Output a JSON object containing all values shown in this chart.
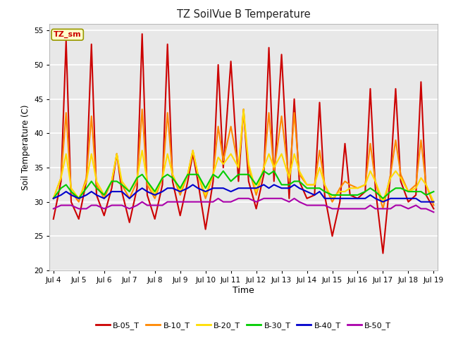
{
  "title": "TZ SoilVue B Temperature",
  "xlabel": "Time",
  "ylabel": "Soil Temperature (C)",
  "ylim": [
    20,
    56
  ],
  "yticks": [
    20,
    25,
    30,
    35,
    40,
    45,
    50,
    55
  ],
  "fig_bg": "#ffffff",
  "plot_bg": "#e8e8e8",
  "legend_label": "TZ_sm",
  "legend_entries": [
    "B-05_T",
    "B-10_T",
    "B-20_T",
    "B-30_T",
    "B-40_T",
    "B-50_T"
  ],
  "line_colors": [
    "#cc0000",
    "#ff8800",
    "#ffdd00",
    "#00cc00",
    "#0000cc",
    "#aa00aa"
  ],
  "series": {
    "B-05_T": {
      "x": [
        4.0,
        4.3,
        4.5,
        4.7,
        5.0,
        5.3,
        5.5,
        5.7,
        6.0,
        6.3,
        6.5,
        6.7,
        7.0,
        7.3,
        7.5,
        7.7,
        8.0,
        8.3,
        8.5,
        8.7,
        9.0,
        9.3,
        9.5,
        9.7,
        10.0,
        10.3,
        10.5,
        10.7,
        11.0,
        11.3,
        11.5,
        11.7,
        12.0,
        12.3,
        12.5,
        12.7,
        13.0,
        13.3,
        13.5,
        13.7,
        14.0,
        14.3,
        14.5,
        14.7,
        15.0,
        15.3,
        15.5,
        15.7,
        16.0,
        16.3,
        16.5,
        16.7,
        17.0,
        17.3,
        17.5,
        17.7,
        18.0,
        18.3,
        18.5,
        18.7,
        19.0
      ],
      "y": [
        27.5,
        33.0,
        53.5,
        30.0,
        27.5,
        33.0,
        53.0,
        31.0,
        28.0,
        32.0,
        37.0,
        31.5,
        27.0,
        32.0,
        54.5,
        31.0,
        27.5,
        32.5,
        53.0,
        33.0,
        28.0,
        33.0,
        37.0,
        33.0,
        26.0,
        33.0,
        50.0,
        35.0,
        50.5,
        33.0,
        43.5,
        33.0,
        29.0,
        34.0,
        52.5,
        33.0,
        51.5,
        30.5,
        45.0,
        33.0,
        30.5,
        31.0,
        44.5,
        31.0,
        25.0,
        30.0,
        38.5,
        31.0,
        30.5,
        31.5,
        46.5,
        32.0,
        22.5,
        34.0,
        46.5,
        33.0,
        30.0,
        31.0,
        47.5,
        31.0,
        29.0
      ]
    },
    "B-10_T": {
      "x": [
        4.0,
        4.3,
        4.5,
        4.7,
        5.0,
        5.3,
        5.5,
        5.7,
        6.0,
        6.3,
        6.5,
        6.7,
        7.0,
        7.3,
        7.5,
        7.7,
        8.0,
        8.3,
        8.5,
        8.7,
        9.0,
        9.3,
        9.5,
        9.7,
        10.0,
        10.3,
        10.5,
        10.7,
        11.0,
        11.3,
        11.5,
        11.7,
        12.0,
        12.3,
        12.5,
        12.7,
        13.0,
        13.3,
        13.5,
        13.7,
        14.0,
        14.3,
        14.5,
        14.7,
        15.0,
        15.3,
        15.5,
        15.7,
        16.0,
        16.3,
        16.5,
        16.7,
        17.0,
        17.3,
        17.5,
        17.7,
        18.0,
        18.3,
        18.5,
        18.7,
        19.0
      ],
      "y": [
        30.5,
        33.5,
        43.0,
        31.5,
        30.0,
        33.5,
        42.5,
        32.5,
        30.5,
        33.0,
        37.0,
        32.5,
        30.5,
        33.0,
        43.5,
        32.5,
        30.5,
        33.5,
        43.0,
        34.0,
        31.0,
        34.0,
        37.5,
        34.0,
        30.5,
        34.0,
        41.0,
        36.0,
        41.0,
        35.0,
        43.0,
        35.0,
        31.0,
        35.0,
        43.0,
        34.5,
        42.5,
        33.0,
        43.0,
        34.0,
        32.5,
        32.5,
        37.5,
        32.5,
        30.0,
        32.0,
        33.0,
        32.5,
        32.0,
        32.5,
        38.5,
        33.0,
        29.0,
        34.0,
        39.0,
        34.0,
        31.5,
        32.5,
        39.0,
        32.5,
        29.5
      ]
    },
    "B-20_T": {
      "x": [
        4.0,
        4.3,
        4.5,
        4.7,
        5.0,
        5.3,
        5.5,
        5.7,
        6.0,
        6.3,
        6.5,
        6.7,
        7.0,
        7.3,
        7.5,
        7.7,
        8.0,
        8.3,
        8.5,
        8.7,
        9.0,
        9.3,
        9.5,
        9.7,
        10.0,
        10.3,
        10.5,
        10.7,
        11.0,
        11.3,
        11.5,
        11.7,
        12.0,
        12.3,
        12.5,
        12.7,
        13.0,
        13.3,
        13.5,
        13.7,
        14.0,
        14.3,
        14.5,
        14.7,
        15.0,
        15.3,
        15.5,
        15.7,
        16.0,
        16.3,
        16.5,
        16.7,
        17.0,
        17.3,
        17.5,
        17.7,
        18.0,
        18.3,
        18.5,
        18.7,
        19.0
      ],
      "y": [
        30.5,
        33.5,
        37.0,
        32.0,
        30.5,
        33.0,
        37.0,
        33.0,
        31.0,
        33.0,
        37.0,
        33.0,
        31.5,
        33.5,
        37.5,
        33.0,
        31.0,
        33.5,
        37.0,
        34.0,
        31.5,
        34.0,
        37.5,
        34.0,
        31.0,
        34.0,
        36.5,
        35.5,
        37.0,
        35.0,
        43.5,
        35.5,
        31.5,
        35.0,
        37.0,
        35.0,
        37.0,
        33.5,
        37.0,
        34.5,
        32.5,
        32.5,
        35.0,
        32.5,
        30.5,
        31.5,
        31.5,
        32.0,
        32.0,
        32.5,
        34.5,
        33.0,
        30.0,
        33.5,
        34.5,
        33.5,
        31.5,
        32.0,
        33.5,
        32.5,
        30.0
      ]
    },
    "B-30_T": {
      "x": [
        4.0,
        4.3,
        4.5,
        4.7,
        5.0,
        5.3,
        5.5,
        5.7,
        6.0,
        6.3,
        6.5,
        6.7,
        7.0,
        7.3,
        7.5,
        7.7,
        8.0,
        8.3,
        8.5,
        8.7,
        9.0,
        9.3,
        9.5,
        9.7,
        10.0,
        10.3,
        10.5,
        10.7,
        11.0,
        11.3,
        11.5,
        11.7,
        12.0,
        12.3,
        12.5,
        12.7,
        13.0,
        13.3,
        13.5,
        13.7,
        14.0,
        14.3,
        14.5,
        14.7,
        15.0,
        15.3,
        15.5,
        15.7,
        16.0,
        16.3,
        16.5,
        16.7,
        17.0,
        17.3,
        17.5,
        17.7,
        18.0,
        18.3,
        18.5,
        18.7,
        19.0
      ],
      "y": [
        30.5,
        32.0,
        32.5,
        31.5,
        30.5,
        32.0,
        33.0,
        32.0,
        31.0,
        33.0,
        33.0,
        32.5,
        31.5,
        33.5,
        34.0,
        33.0,
        31.5,
        33.5,
        34.0,
        33.5,
        32.0,
        34.0,
        34.0,
        34.0,
        32.0,
        34.0,
        33.5,
        34.5,
        33.0,
        34.0,
        34.0,
        34.0,
        32.5,
        34.5,
        34.0,
        34.5,
        32.5,
        32.5,
        33.0,
        33.0,
        32.0,
        32.0,
        32.0,
        31.5,
        31.0,
        31.0,
        31.0,
        31.0,
        31.0,
        31.5,
        32.0,
        31.5,
        30.5,
        31.5,
        32.0,
        32.0,
        31.5,
        31.5,
        31.5,
        31.0,
        31.5
      ]
    },
    "B-40_T": {
      "x": [
        4.0,
        4.3,
        4.5,
        4.7,
        5.0,
        5.3,
        5.5,
        5.7,
        6.0,
        6.3,
        6.5,
        6.7,
        7.0,
        7.3,
        7.5,
        7.7,
        8.0,
        8.3,
        8.5,
        8.7,
        9.0,
        9.3,
        9.5,
        9.7,
        10.0,
        10.3,
        10.5,
        10.7,
        11.0,
        11.3,
        11.5,
        11.7,
        12.0,
        12.3,
        12.5,
        12.7,
        13.0,
        13.3,
        13.5,
        13.7,
        14.0,
        14.3,
        14.5,
        14.7,
        15.0,
        15.3,
        15.5,
        15.7,
        16.0,
        16.3,
        16.5,
        16.7,
        17.0,
        17.3,
        17.5,
        17.7,
        18.0,
        18.3,
        18.5,
        18.7,
        19.0
      ],
      "y": [
        30.5,
        31.0,
        31.5,
        31.0,
        30.5,
        31.0,
        31.5,
        31.0,
        30.5,
        31.5,
        31.5,
        31.5,
        30.5,
        31.5,
        32.0,
        31.5,
        31.0,
        31.5,
        32.0,
        32.0,
        31.5,
        32.0,
        32.5,
        32.0,
        31.5,
        32.0,
        32.0,
        32.0,
        31.5,
        32.0,
        32.0,
        32.0,
        32.0,
        32.5,
        32.0,
        32.5,
        32.0,
        32.0,
        32.5,
        32.0,
        31.5,
        31.0,
        31.5,
        30.5,
        30.5,
        30.5,
        30.5,
        30.5,
        30.5,
        30.5,
        31.0,
        30.5,
        30.0,
        30.5,
        30.5,
        30.5,
        30.5,
        30.5,
        30.0,
        30.0,
        30.0
      ]
    },
    "B-50_T": {
      "x": [
        4.0,
        4.3,
        4.5,
        4.7,
        5.0,
        5.3,
        5.5,
        5.7,
        6.0,
        6.3,
        6.5,
        6.7,
        7.0,
        7.3,
        7.5,
        7.7,
        8.0,
        8.3,
        8.5,
        8.7,
        9.0,
        9.3,
        9.5,
        9.7,
        10.0,
        10.3,
        10.5,
        10.7,
        11.0,
        11.3,
        11.5,
        11.7,
        12.0,
        12.3,
        12.5,
        12.7,
        13.0,
        13.3,
        13.5,
        13.7,
        14.0,
        14.3,
        14.5,
        14.7,
        15.0,
        15.3,
        15.5,
        15.7,
        16.0,
        16.3,
        16.5,
        16.7,
        17.0,
        17.3,
        17.5,
        17.7,
        18.0,
        18.3,
        18.5,
        18.7,
        19.0
      ],
      "y": [
        29.0,
        29.5,
        29.5,
        29.5,
        29.0,
        29.0,
        29.5,
        29.5,
        29.0,
        29.5,
        29.5,
        29.5,
        29.0,
        29.5,
        30.0,
        29.5,
        29.5,
        29.5,
        30.0,
        30.0,
        30.0,
        30.0,
        30.0,
        30.0,
        30.0,
        30.0,
        30.5,
        30.0,
        30.0,
        30.5,
        30.5,
        30.5,
        30.0,
        30.5,
        30.5,
        30.5,
        30.5,
        30.0,
        30.5,
        30.0,
        29.5,
        29.5,
        29.5,
        29.5,
        29.0,
        29.0,
        29.0,
        29.0,
        29.0,
        29.0,
        29.5,
        29.0,
        29.0,
        29.0,
        29.5,
        29.5,
        29.0,
        29.5,
        29.0,
        29.0,
        28.5
      ]
    }
  },
  "xticks": [
    4,
    5,
    6,
    7,
    8,
    9,
    10,
    11,
    12,
    13,
    14,
    15,
    16,
    17,
    18,
    19
  ],
  "xtick_labels": [
    "Jul 4",
    "Jul 5",
    "Jul 6",
    "Jul 7",
    "Jul 8",
    "Jul 9",
    "Jul 10",
    "Jul 11",
    "Jul 12",
    "Jul 13",
    "Jul 14",
    "Jul 15",
    "Jul 16",
    "Jul 17",
    "Jul 18",
    "Jul 19"
  ]
}
